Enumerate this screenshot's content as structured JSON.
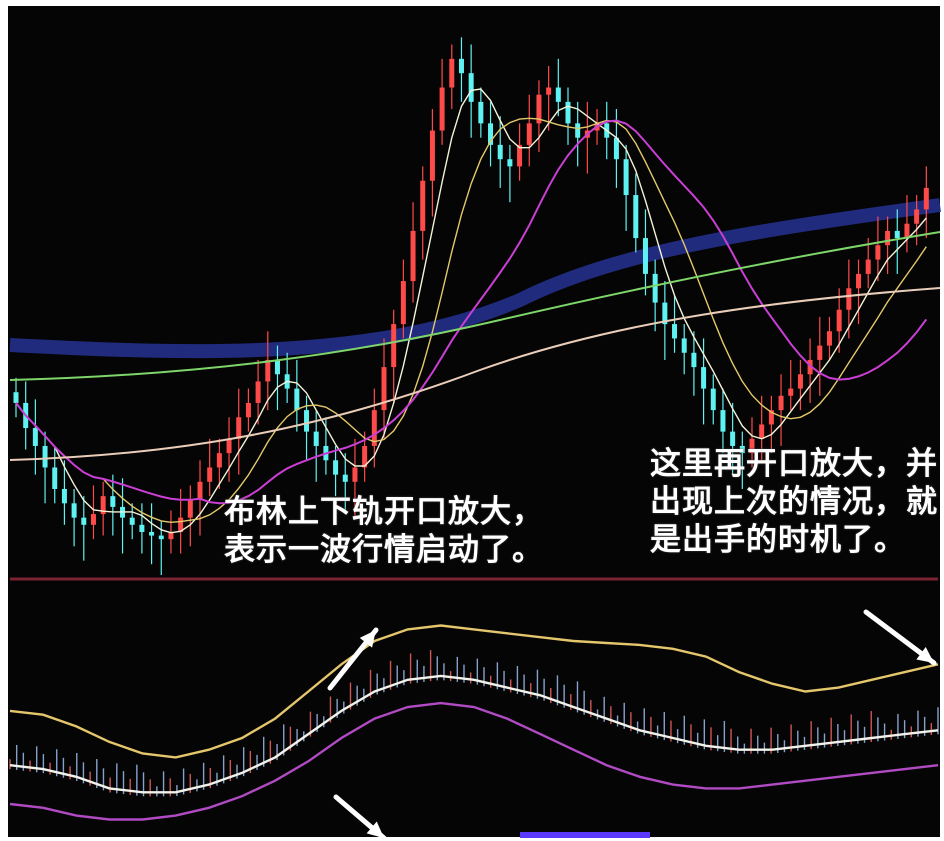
{
  "chart_data": [
    {
      "panel": "main",
      "type": "candlestick",
      "background": "#050505",
      "colors": {
        "up": "#ff4a4a",
        "down": "#5ef2f2",
        "ma_short": "#f3f3d8",
        "ma_mid": "#e4c96a",
        "ma_long": "#c93fd3",
        "ma_year_green": "#7ed56a",
        "ma_year_beige": "#e9cdb8",
        "volume_band": "#24308c",
        "divider": "#7a2432"
      },
      "x_axis": "session index (no labels shown)",
      "y_axis": "price (no labels shown)",
      "candles_close": [
        62,
        55,
        50,
        44,
        38,
        34,
        30,
        28,
        31,
        36,
        33,
        30,
        28,
        26,
        25,
        24,
        26,
        30,
        35,
        40,
        44,
        48,
        52,
        58,
        62,
        68,
        74,
        70,
        66,
        60,
        54,
        50,
        46,
        42,
        40,
        44,
        50,
        60,
        72,
        84,
        96,
        110,
        124,
        138,
        150,
        158,
        154,
        146,
        140,
        134,
        130,
        128,
        134,
        140,
        148,
        150,
        146,
        140,
        136,
        138,
        140,
        136,
        130,
        120,
        108,
        98,
        90,
        84,
        80,
        76,
        72,
        66,
        60,
        54,
        50,
        48,
        52,
        56,
        60,
        64,
        66,
        70,
        74,
        78,
        82,
        88,
        94,
        98,
        102,
        106,
        110,
        108,
        112,
        116,
        122
      ],
      "annotations": []
    },
    {
      "panel": "indicator",
      "type": "bollinger",
      "colors": {
        "upper": "#e4c66c",
        "middle": "#f2f2ea",
        "lower": "#b14bc4",
        "bars_up": "#ff6b6b",
        "bars_down": "#a8c8ff",
        "arrow": "#ffffff"
      },
      "series": [
        {
          "name": "upper",
          "values": [
            60,
            58,
            52,
            44,
            38,
            36,
            40,
            46,
            56,
            70,
            84,
            96,
            102,
            104,
            102,
            100,
            98,
            96,
            95,
            94,
            92,
            88,
            80,
            74,
            70,
            72,
            76,
            80,
            84
          ]
        },
        {
          "name": "middle",
          "values": [
            32,
            30,
            26,
            20,
            18,
            18,
            22,
            28,
            36,
            48,
            60,
            70,
            76,
            78,
            76,
            72,
            68,
            62,
            56,
            50,
            46,
            42,
            40,
            40,
            42,
            44,
            46,
            48,
            50
          ]
        },
        {
          "name": "lower",
          "values": [
            12,
            10,
            6,
            4,
            4,
            6,
            10,
            16,
            24,
            34,
            46,
            56,
            62,
            64,
            62,
            56,
            48,
            40,
            32,
            26,
            22,
            20,
            20,
            22,
            24,
            26,
            28,
            30,
            32
          ]
        }
      ]
    }
  ],
  "annotations": {
    "left": {
      "line1": "布林上下轨开口放大，",
      "line2": "表示一波行情启动了。"
    },
    "right": {
      "line1": "这里再开口放大，并",
      "line2": "出现上次的情况，就",
      "line3": "是出手的时机了。"
    }
  }
}
